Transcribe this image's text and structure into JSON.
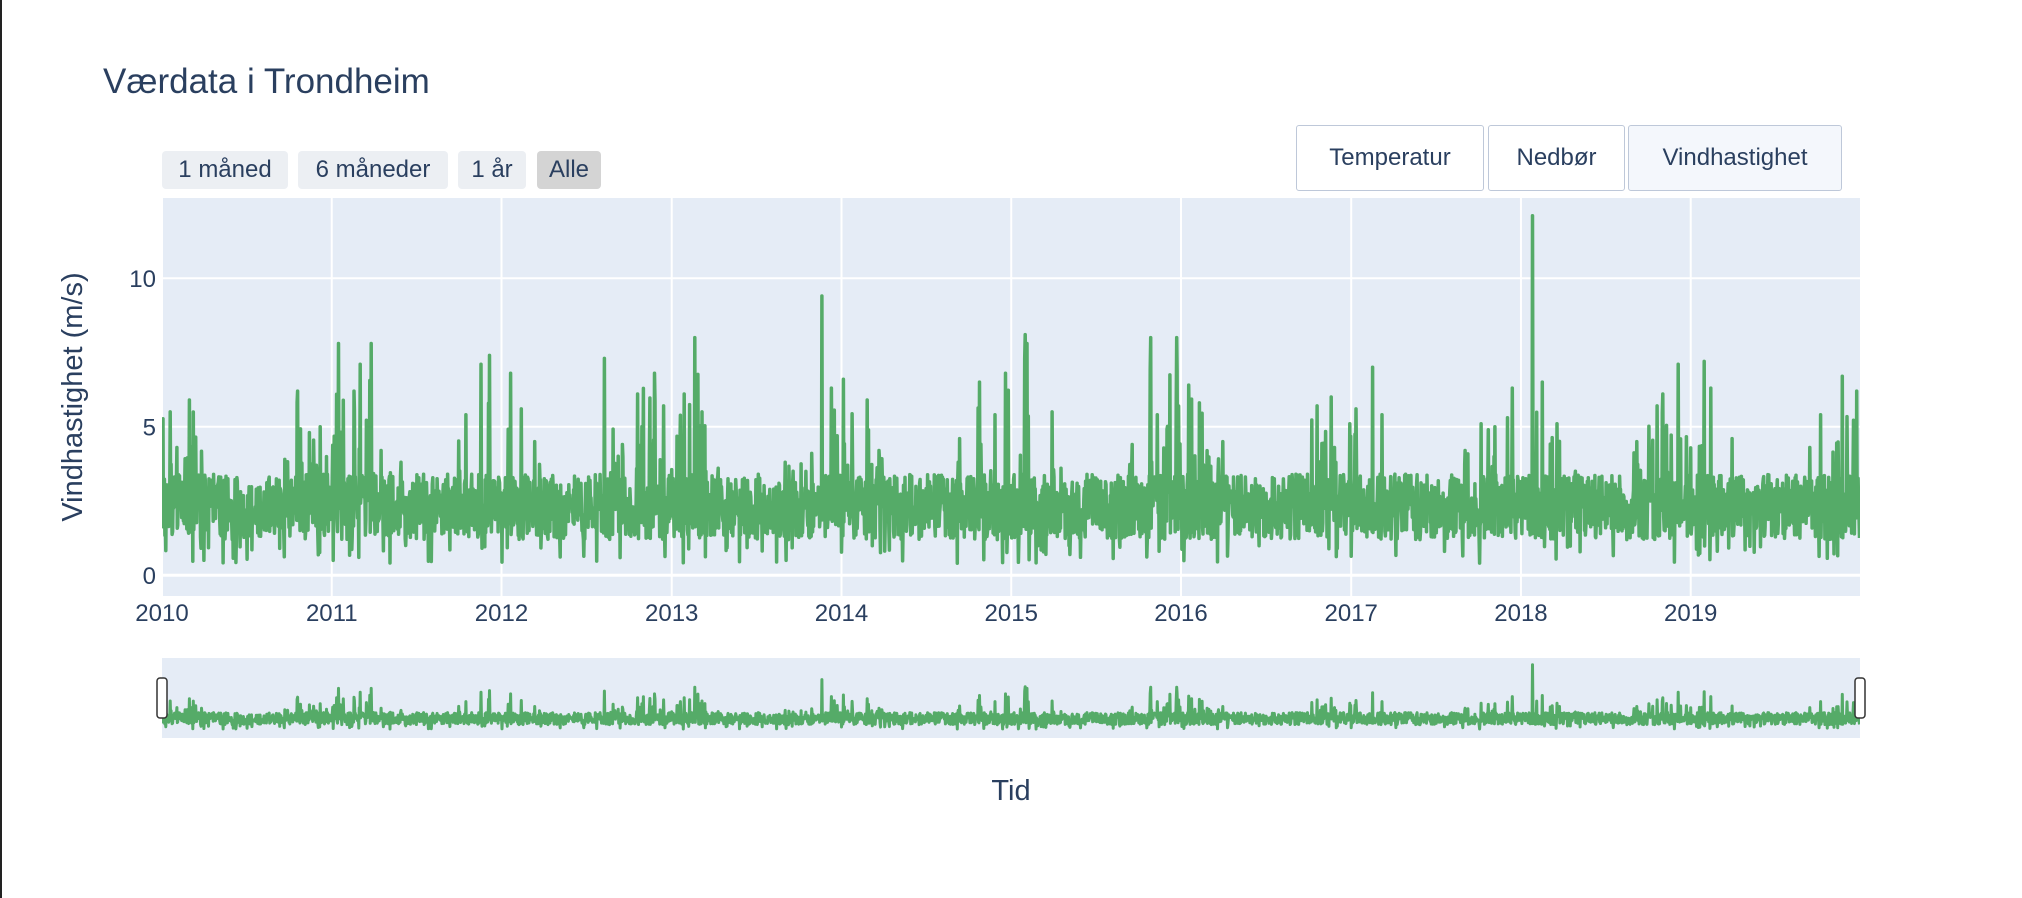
{
  "chart": {
    "title": "Værdata i Trondheim"
  },
  "range_selector": [
    {
      "label": "1 måned",
      "active": false
    },
    {
      "label": "6 måneder",
      "active": false
    },
    {
      "label": "1 år",
      "active": false
    },
    {
      "label": "Alle",
      "active": true
    }
  ],
  "update_menu": [
    {
      "label": "Temperatur",
      "active": false
    },
    {
      "label": "Nedbør",
      "active": false
    },
    {
      "label": "Vindhastighet",
      "active": true
    }
  ],
  "colors": {
    "line": "#55ab68",
    "plot_bg": "#e5ecf6",
    "grid": "#ffffff",
    "text": "#2a3f5f"
  },
  "chart_data": {
    "type": "line",
    "title": "Værdata i Trondheim",
    "xlabel": "Tid",
    "ylabel": "Vindhastighet (m/s)",
    "x_range": [
      "2010-01-01",
      "2019-12-31"
    ],
    "ylim": [
      -0.7,
      12.7
    ],
    "y_ticks": [
      0,
      5,
      10
    ],
    "x_ticks": [
      "2010",
      "2011",
      "2012",
      "2013",
      "2014",
      "2015",
      "2016",
      "2017",
      "2018",
      "2019"
    ],
    "grid": true,
    "legend": "none",
    "rangeslider": true,
    "series": [
      {
        "values_note_free": true,
        "x": [
          "2010-01",
          "2010-02",
          "2010-03",
          "2010-04",
          "2010-05",
          "2010-06",
          "2010-07",
          "2010-08",
          "2010-09",
          "2010-10",
          "2010-11",
          "2010-12",
          "2011-01",
          "2011-02",
          "2011-03",
          "2011-04",
          "2011-05",
          "2011-06",
          "2011-07",
          "2011-08",
          "2011-09",
          "2011-10",
          "2011-11",
          "2011-12",
          "2012-01",
          "2012-02",
          "2012-03",
          "2012-04",
          "2012-05",
          "2012-06",
          "2012-07",
          "2012-08",
          "2012-09",
          "2012-10",
          "2012-11",
          "2012-12",
          "2013-01",
          "2013-02",
          "2013-03",
          "2013-04",
          "2013-05",
          "2013-06",
          "2013-07",
          "2013-08",
          "2013-09",
          "2013-10",
          "2013-11",
          "2013-12",
          "2014-01",
          "2014-02",
          "2014-03",
          "2014-04",
          "2014-05",
          "2014-06",
          "2014-07",
          "2014-08",
          "2014-09",
          "2014-10",
          "2014-11",
          "2014-12",
          "2015-01",
          "2015-02",
          "2015-03",
          "2015-04",
          "2015-05",
          "2015-06",
          "2015-07",
          "2015-08",
          "2015-09",
          "2015-10",
          "2015-11",
          "2015-12",
          "2016-01",
          "2016-02",
          "2016-03",
          "2016-04",
          "2016-05",
          "2016-06",
          "2016-07",
          "2016-08",
          "2016-09",
          "2016-10",
          "2016-11",
          "2016-12",
          "2017-01",
          "2017-02",
          "2017-03",
          "2017-04",
          "2017-05",
          "2017-06",
          "2017-07",
          "2017-08",
          "2017-09",
          "2017-10",
          "2017-11",
          "2017-12",
          "2018-01",
          "2018-02",
          "2018-03",
          "2018-04",
          "2018-05",
          "2018-06",
          "2018-07",
          "2018-08",
          "2018-09",
          "2018-10",
          "2018-11",
          "2018-12",
          "2019-01",
          "2019-02",
          "2019-03",
          "2019-04",
          "2019-05",
          "2019-06",
          "2019-07",
          "2019-08",
          "2019-09",
          "2019-10",
          "2019-11",
          "2019-12"
        ],
        "y": [
          5.5,
          4.3,
          5.9,
          3.2,
          2.6,
          2.1,
          2.3,
          2.8,
          3.9,
          6.2,
          4.8,
          5.0,
          7.8,
          6.2,
          7.8,
          4.2,
          3.8,
          2.6,
          2.4,
          2.8,
          3.4,
          5.4,
          7.1,
          7.4,
          6.8,
          5.6,
          4.5,
          3.1,
          2.6,
          2.2,
          2.4,
          7.3,
          4.4,
          6.1,
          6.8,
          5.7,
          6.1,
          8.0,
          5.5,
          3.6,
          2.6,
          2.2,
          2.5,
          2.9,
          3.8,
          4.1,
          9.4,
          6.3,
          6.6,
          5.9,
          4.2,
          3.3,
          2.6,
          2.3,
          2.5,
          2.9,
          4.6,
          6.5,
          5.4,
          6.8,
          8.1,
          7.8,
          5.5,
          3.6,
          2.7,
          2.4,
          2.6,
          3.1,
          4.4,
          8.0,
          5.4,
          8.0,
          6.4,
          5.8,
          4.5,
          3.2,
          2.6,
          2.3,
          2.5,
          2.7,
          3.4,
          5.7,
          6.0,
          5.1,
          5.6,
          7.0,
          5.4,
          3.4,
          2.6,
          2.2,
          2.6,
          3.0,
          4.2,
          5.1,
          5.0,
          6.3,
          12.1,
          6.5,
          5.1,
          3.5,
          2.7,
          2.3,
          2.5,
          2.9,
          4.5,
          5.7,
          6.1,
          7.1,
          7.2,
          6.3,
          4.6,
          3.3,
          2.6,
          2.3,
          2.5,
          2.8,
          4.3,
          5.4,
          6.7,
          6.2
        ]
      }
    ]
  }
}
